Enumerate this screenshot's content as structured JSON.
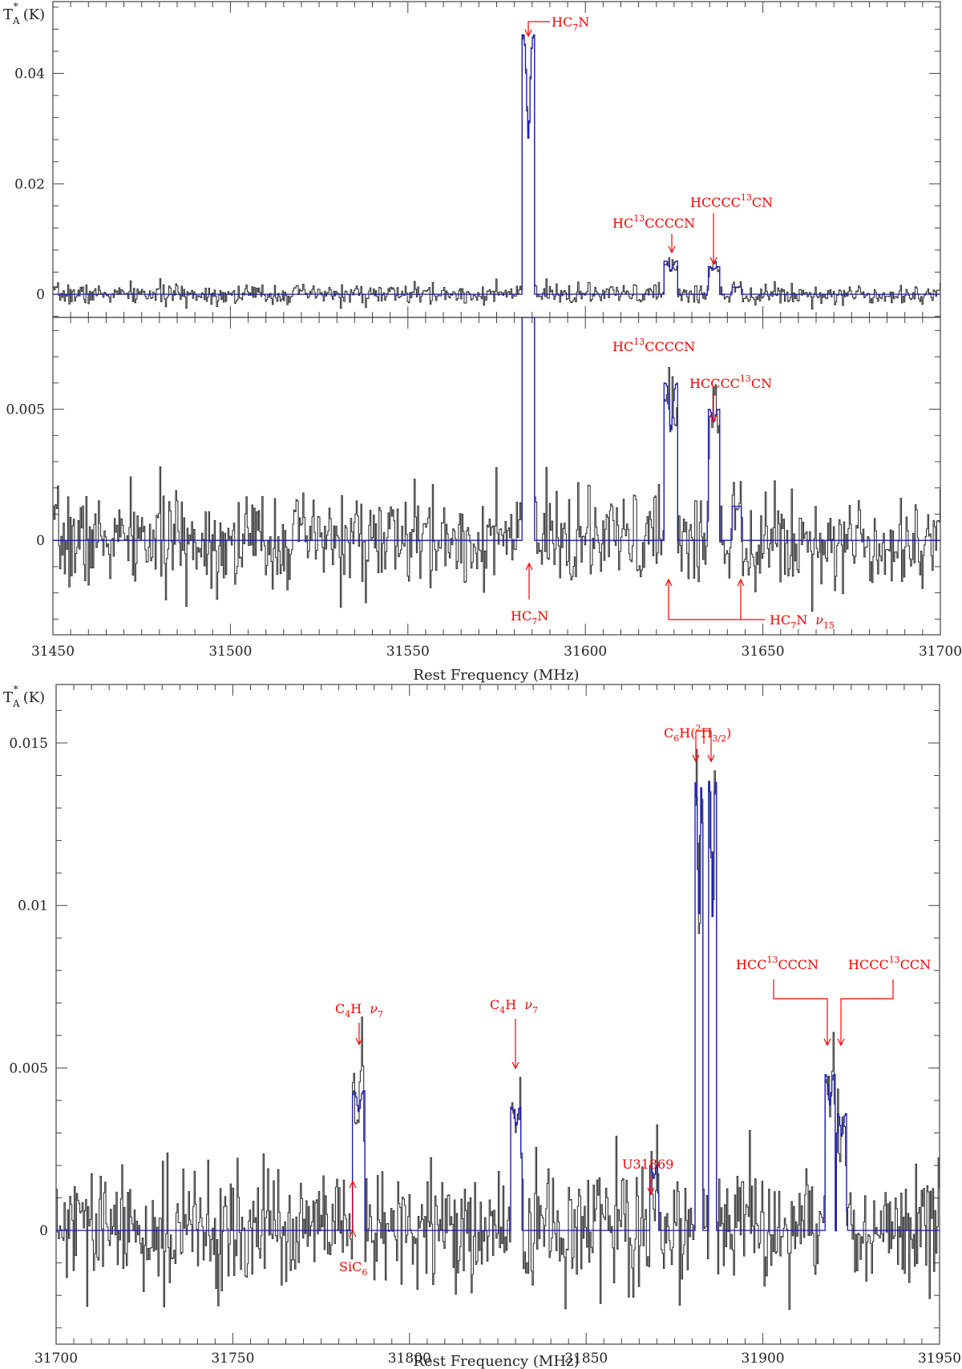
{
  "colors": {
    "data": "#333333",
    "model": "#1818b8",
    "annotation": "#ff0000"
  },
  "chart_data": [
    {
      "type": "line",
      "xlabel": "",
      "ylabel": "T_A^* (K)",
      "ylabel_parts": {
        "main": "T",
        "sub": "A",
        "sup": "*",
        "unit": "(K)"
      },
      "xlim": [
        31450,
        31700
      ],
      "ylim": [
        -0.0042,
        0.053
      ],
      "yticks": [
        0,
        0.02,
        0.04
      ],
      "ytick_labels": [
        "0",
        "0.02",
        "0.04"
      ],
      "xticks": [
        31450,
        31500,
        31550,
        31600,
        31650,
        31700
      ],
      "xtick_labels": [],
      "grid": false,
      "lines": [
        {
          "x": 31583.8,
          "height": 0.047,
          "width": 3.6,
          "dip": 0.6
        },
        {
          "x": 31624.0,
          "height": 0.006,
          "width": 4.0,
          "dip": 0.7
        },
        {
          "x": 31636.0,
          "height": 0.005,
          "width": 3.4,
          "dip": 0.9
        },
        {
          "x": 31642.5,
          "height": 0.0013,
          "width": 3.0,
          "dip": 1.0
        }
      ],
      "noise_rms": 0.0009,
      "annotations": [
        {
          "label": "HC₇N",
          "x": 31584,
          "y": 0.048
        },
        {
          "label": "HC¹³CCCCN",
          "x": 31624,
          "y": 0.0075
        },
        {
          "label": "HCCCC¹³CN",
          "x": 31636,
          "y": 0.0058
        }
      ]
    },
    {
      "type": "line",
      "xlabel": "Rest Frequency (MHz)",
      "ylabel": "",
      "xlim": [
        31450,
        31700
      ],
      "ylim": [
        -0.0036,
        0.0085
      ],
      "yticks": [
        0,
        0.005
      ],
      "ytick_labels": [
        "0",
        "0.005"
      ],
      "xticks": [
        31450,
        31500,
        31550,
        31600,
        31650,
        31700
      ],
      "xtick_labels": [
        "31450",
        "31500",
        "31550",
        "31600",
        "31650",
        "31700"
      ],
      "grid": false,
      "lines": [
        {
          "x": 31583.8,
          "height": 0.047,
          "width": 3.6,
          "dip": 0.6
        },
        {
          "x": 31624.0,
          "height": 0.006,
          "width": 4.0,
          "dip": 0.7
        },
        {
          "x": 31636.0,
          "height": 0.005,
          "width": 3.4,
          "dip": 0.9
        },
        {
          "x": 31642.5,
          "height": 0.0013,
          "width": 3.0,
          "dip": 1.0
        }
      ],
      "noise_rms": 0.0009,
      "annotations": [
        {
          "label": "HC¹³CCCCN",
          "x": 31624,
          "y": 0.0068
        },
        {
          "label": "HCCCC¹³CN",
          "x": 31636,
          "y": 0.0052
        },
        {
          "label": "HC₇N",
          "x": 31584,
          "y": -0.0004
        },
        {
          "label": "HC₇N ν₁₅",
          "x": [
            31623,
            31642.5
          ],
          "y": -0.0008
        }
      ]
    },
    {
      "type": "line",
      "xlabel": "Rest Frequency (MHz)",
      "ylabel": "T_A^* (K)",
      "ylabel_parts": {
        "main": "T",
        "sub": "A",
        "sup": "*",
        "unit": "(K)"
      },
      "xlim": [
        31700,
        31950
      ],
      "ylim": [
        -0.0035,
        0.0168
      ],
      "yticks": [
        0,
        0.005,
        0.01,
        0.015
      ],
      "ytick_labels": [
        "0",
        "0.005",
        "0.01",
        "0.015"
      ],
      "xticks": [
        31700,
        31750,
        31800,
        31850,
        31900,
        31950
      ],
      "xtick_labels": [
        "31700",
        "31750",
        "31800",
        "31850",
        "31900",
        "31950"
      ],
      "grid": false,
      "lines": [
        {
          "x": 31785.5,
          "height": 0.0043,
          "width": 3.6,
          "dip": 0.85
        },
        {
          "x": 31830.0,
          "height": 0.0038,
          "width": 3.2,
          "dip": 0.85
        },
        {
          "x": 31869.0,
          "height": 0.002,
          "width": 2.6,
          "dip": 0.8
        },
        {
          "x": 31881.7,
          "height": 0.0138,
          "width": 2.2,
          "dip": 0.7
        },
        {
          "x": 31885.6,
          "height": 0.0138,
          "width": 2.2,
          "dip": 0.7
        },
        {
          "x": 31918.8,
          "height": 0.0048,
          "width": 3.0,
          "dip": 0.8
        },
        {
          "x": 31922.2,
          "height": 0.0036,
          "width": 3.0,
          "dip": 0.8
        }
      ],
      "noise_rms": 0.0009,
      "annotations": [
        {
          "label": "C₄H ν₇",
          "x": 31786,
          "y": 0.0055
        },
        {
          "label": "C₄H ν₇",
          "x": 31830,
          "y": 0.0048
        },
        {
          "label": "U31869",
          "x": 31869,
          "y": 0.0022
        },
        {
          "label": "C₆H(²Π₃/₂)",
          "x": [
            31881.7,
            31885.6
          ],
          "y": 0.0145
        },
        {
          "label": "HCC¹³CCCN",
          "x": 31919,
          "y": 0.0053
        },
        {
          "label": "HCCC¹³CCN",
          "x": 31922,
          "y": 0.0053
        },
        {
          "label": "SiC₆",
          "x": 31785,
          "y": -0.0005
        }
      ]
    }
  ],
  "text": {
    "ylabel_main": "T",
    "ylabel_sub": "A",
    "ylabel_sup": "*",
    "ylabel_unit": "(K)",
    "xlabel": "Rest Frequency (MHz)",
    "hc7n_main": "HC",
    "hc7n_sub": "7",
    "hc7n_n": "N",
    "hc13_pre": "HC",
    "hc13_sup": "13",
    "hc13_post": "CCCCN",
    "hcccc13_pre": "HCCCC",
    "hcccc13_sup": "13",
    "hcccc13_post": "CN",
    "nu": "ν",
    "nu15_sub": "15",
    "nu7_sub": "7",
    "c4h_c": "C",
    "c4h_sub": "4",
    "c4h_h": "H",
    "u31869": "U31869",
    "c6h_c": "C",
    "c6h_sub6": "6",
    "c6h_h": "H(",
    "c6h_sup2": "2",
    "c6h_pi": "Π",
    "c6h_sub32": "3/2",
    "c6h_close": ")",
    "hcc13_pre": "HCC",
    "hcc13_sup": "13",
    "hcc13_post": "CCCN",
    "hccc13_pre": "HCCC",
    "hccc13_sup": "13",
    "hccc13_post": "CCN",
    "sic6_main": "SiC",
    "sic6_sub": "6"
  }
}
